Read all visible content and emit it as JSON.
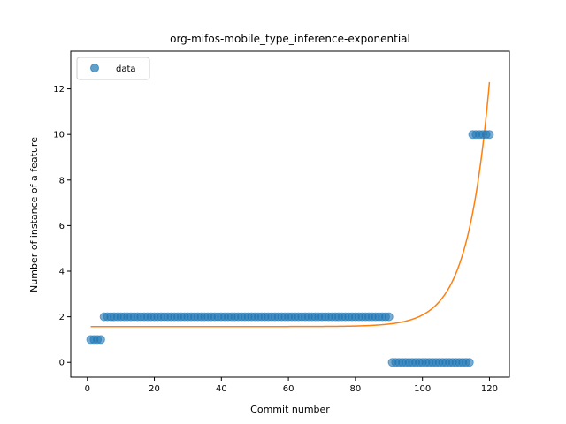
{
  "chart_data": {
    "type": "scatter",
    "title": "org-mifos-mobile_type_inference-exponential",
    "xlabel": "Commit number",
    "ylabel": "Number of instance of a feature",
    "xlim": [
      -4.95,
      125.95
    ],
    "ylim": [
      -0.65,
      13.65
    ],
    "xticks": [
      0,
      20,
      40,
      60,
      80,
      100,
      120
    ],
    "yticks": [
      0,
      2,
      4,
      6,
      8,
      10,
      12
    ],
    "legend": {
      "position": "top-left",
      "entries": [
        "data"
      ]
    },
    "colors": {
      "data": "#1f77b4",
      "fit": "#ff7f0e"
    },
    "series": [
      {
        "name": "data",
        "kind": "scatter",
        "segments": [
          {
            "x_from": 1,
            "x_to": 4,
            "y": 1
          },
          {
            "x_from": 5,
            "x_to": 90,
            "y": 2
          },
          {
            "x_from": 91,
            "x_to": 114,
            "y": 0
          },
          {
            "x_from": 115,
            "x_to": 120,
            "y": 10
          }
        ]
      },
      {
        "kind": "line",
        "x_range": [
          1,
          120
        ],
        "model": "y = a + b * exp(c * x)",
        "params": {
          "a": 1.57,
          "b": 1.21e-07,
          "c": 0.1525
        }
      }
    ]
  }
}
